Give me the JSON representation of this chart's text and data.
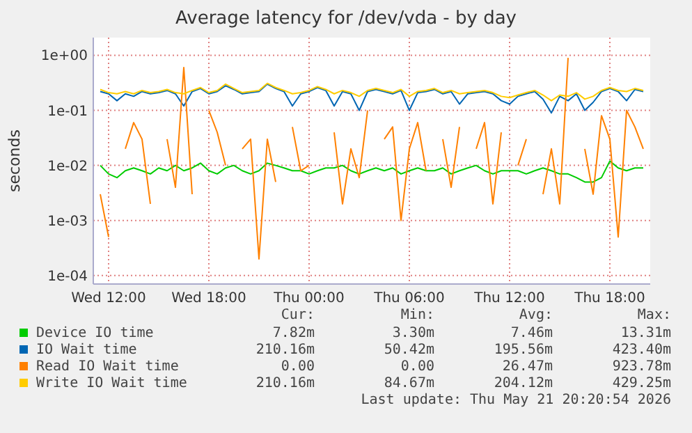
{
  "chart_data": {
    "type": "line",
    "title": "Average latency for /dev/vda - by day",
    "ylabel": "seconds",
    "log": "y",
    "grid": true,
    "legend": "bottom",
    "marker": "none",
    "line_style": "solid",
    "xlim": [
      "2026-05-20T11:05",
      "2026-05-21T20:25"
    ],
    "xticks": [
      {
        "value": "2026-05-20T12:00",
        "label": "Wed 12:00"
      },
      {
        "value": "2026-05-20T18:00",
        "label": "Wed 18:00"
      },
      {
        "value": "2026-05-21T00:00",
        "label": "Thu 00:00"
      },
      {
        "value": "2026-05-21T06:00",
        "label": "Thu 06:00"
      },
      {
        "value": "2026-05-21T12:00",
        "label": "Thu 12:00"
      },
      {
        "value": "2026-05-21T18:00",
        "label": "Thu 18:00"
      }
    ],
    "ylim": [
      7e-05,
      2.1
    ],
    "yticks": [
      {
        "value": 0.0001,
        "label": "1e-04"
      },
      {
        "value": 0.001,
        "label": "1e-03"
      },
      {
        "value": 0.01,
        "label": "1e-02"
      },
      {
        "value": 0.1,
        "label": "1e-01"
      },
      {
        "value": 1,
        "label": "1e+00"
      }
    ],
    "x": [
      "2026-05-20T11:30",
      "2026-05-20T12:00",
      "2026-05-20T12:30",
      "2026-05-20T13:00",
      "2026-05-20T13:30",
      "2026-05-20T14:00",
      "2026-05-20T14:30",
      "2026-05-20T15:00",
      "2026-05-20T15:30",
      "2026-05-20T16:00",
      "2026-05-20T16:30",
      "2026-05-20T17:00",
      "2026-05-20T17:30",
      "2026-05-20T18:00",
      "2026-05-20T18:30",
      "2026-05-20T19:00",
      "2026-05-20T19:30",
      "2026-05-20T20:00",
      "2026-05-20T20:30",
      "2026-05-20T21:00",
      "2026-05-20T21:30",
      "2026-05-20T22:00",
      "2026-05-20T22:30",
      "2026-05-20T23:00",
      "2026-05-20T23:30",
      "2026-05-21T00:00",
      "2026-05-21T00:30",
      "2026-05-21T01:00",
      "2026-05-21T01:30",
      "2026-05-21T02:00",
      "2026-05-21T02:30",
      "2026-05-21T03:00",
      "2026-05-21T03:30",
      "2026-05-21T04:00",
      "2026-05-21T04:30",
      "2026-05-21T05:00",
      "2026-05-21T05:30",
      "2026-05-21T06:00",
      "2026-05-21T06:30",
      "2026-05-21T07:00",
      "2026-05-21T07:30",
      "2026-05-21T08:00",
      "2026-05-21T08:30",
      "2026-05-21T09:00",
      "2026-05-21T09:30",
      "2026-05-21T10:00",
      "2026-05-21T10:30",
      "2026-05-21T11:00",
      "2026-05-21T11:30",
      "2026-05-21T12:00",
      "2026-05-21T12:30",
      "2026-05-21T13:00",
      "2026-05-21T13:30",
      "2026-05-21T14:00",
      "2026-05-21T14:30",
      "2026-05-21T15:00",
      "2026-05-21T15:30",
      "2026-05-21T16:00",
      "2026-05-21T16:30",
      "2026-05-21T17:00",
      "2026-05-21T17:30",
      "2026-05-21T18:00",
      "2026-05-21T18:30",
      "2026-05-21T19:00",
      "2026-05-21T19:30",
      "2026-05-21T20:00"
    ],
    "series": [
      {
        "name": "Device IO time",
        "color": "#00cc00",
        "values": [
          0.01,
          0.007,
          0.006,
          0.008,
          0.009,
          0.008,
          0.007,
          0.009,
          0.008,
          0.01,
          0.008,
          0.009,
          0.011,
          0.008,
          0.007,
          0.009,
          0.01,
          0.008,
          0.007,
          0.008,
          0.011,
          0.01,
          0.009,
          0.008,
          0.008,
          0.007,
          0.008,
          0.009,
          0.009,
          0.01,
          0.008,
          0.007,
          0.008,
          0.009,
          0.008,
          0.009,
          0.007,
          0.008,
          0.009,
          0.008,
          0.008,
          0.009,
          0.007,
          0.008,
          0.009,
          0.01,
          0.008,
          0.007,
          0.008,
          0.008,
          0.008,
          0.007,
          0.008,
          0.009,
          0.008,
          0.007,
          0.007,
          0.006,
          0.005,
          0.005,
          0.006,
          0.012,
          0.009,
          0.008,
          0.009,
          0.009
        ]
      },
      {
        "name": "IO Wait time",
        "color": "#0066b3",
        "values": [
          0.22,
          0.2,
          0.15,
          0.2,
          0.18,
          0.22,
          0.2,
          0.21,
          0.23,
          0.2,
          0.12,
          0.22,
          0.25,
          0.2,
          0.22,
          0.28,
          0.24,
          0.2,
          0.21,
          0.22,
          0.3,
          0.25,
          0.22,
          0.12,
          0.2,
          0.22,
          0.26,
          0.23,
          0.12,
          0.22,
          0.2,
          0.1,
          0.22,
          0.24,
          0.22,
          0.2,
          0.23,
          0.1,
          0.21,
          0.22,
          0.24,
          0.2,
          0.22,
          0.13,
          0.2,
          0.21,
          0.22,
          0.2,
          0.15,
          0.13,
          0.18,
          0.2,
          0.22,
          0.16,
          0.09,
          0.18,
          0.15,
          0.2,
          0.1,
          0.14,
          0.22,
          0.25,
          0.22,
          0.15,
          0.24,
          0.22
        ]
      },
      {
        "name": "Read IO Wait time",
        "color": "#ff8000",
        "values": [
          0.003,
          0.0005,
          null,
          0.02,
          0.06,
          0.03,
          0.002,
          null,
          0.03,
          0.004,
          0.6,
          0.003,
          null,
          0.1,
          0.04,
          0.01,
          null,
          0.02,
          0.03,
          0.0002,
          0.03,
          0.005,
          null,
          0.05,
          0.008,
          0.01,
          null,
          null,
          0.04,
          0.002,
          0.02,
          0.006,
          0.1,
          null,
          0.03,
          0.05,
          0.001,
          0.02,
          0.06,
          0.008,
          null,
          0.03,
          0.004,
          0.05,
          null,
          0.02,
          0.06,
          0.002,
          0.04,
          null,
          0.01,
          0.03,
          null,
          0.003,
          0.02,
          0.002,
          0.9,
          null,
          0.02,
          0.003,
          0.08,
          0.03,
          0.0005,
          0.1,
          0.05,
          0.02
        ]
      },
      {
        "name": "Write IO Wait time",
        "color": "#ffcc00",
        "values": [
          0.24,
          0.21,
          0.2,
          0.22,
          0.2,
          0.23,
          0.21,
          0.22,
          0.24,
          0.21,
          0.2,
          0.23,
          0.26,
          0.21,
          0.23,
          0.3,
          0.25,
          0.21,
          0.22,
          0.23,
          0.31,
          0.26,
          0.23,
          0.2,
          0.21,
          0.23,
          0.27,
          0.24,
          0.2,
          0.23,
          0.21,
          0.18,
          0.23,
          0.25,
          0.23,
          0.21,
          0.24,
          0.18,
          0.22,
          0.23,
          0.25,
          0.21,
          0.23,
          0.2,
          0.21,
          0.22,
          0.23,
          0.21,
          0.18,
          0.17,
          0.19,
          0.21,
          0.23,
          0.19,
          0.15,
          0.19,
          0.18,
          0.21,
          0.16,
          0.18,
          0.23,
          0.26,
          0.23,
          0.22,
          0.25,
          0.23
        ]
      }
    ],
    "annotations": [
      "Cur:",
      "Min:",
      "Avg:",
      "Max:",
      "7.82m",
      "3.30m",
      "7.46m",
      "13.31m",
      "210.16m",
      "50.42m",
      "195.56m",
      "423.40m",
      "0.00",
      "0.00",
      "26.47m",
      "923.78m",
      "210.16m",
      "84.67m",
      "204.12m",
      "429.25m",
      "Last update: Thu May 21 20:20:54 2026"
    ]
  }
}
